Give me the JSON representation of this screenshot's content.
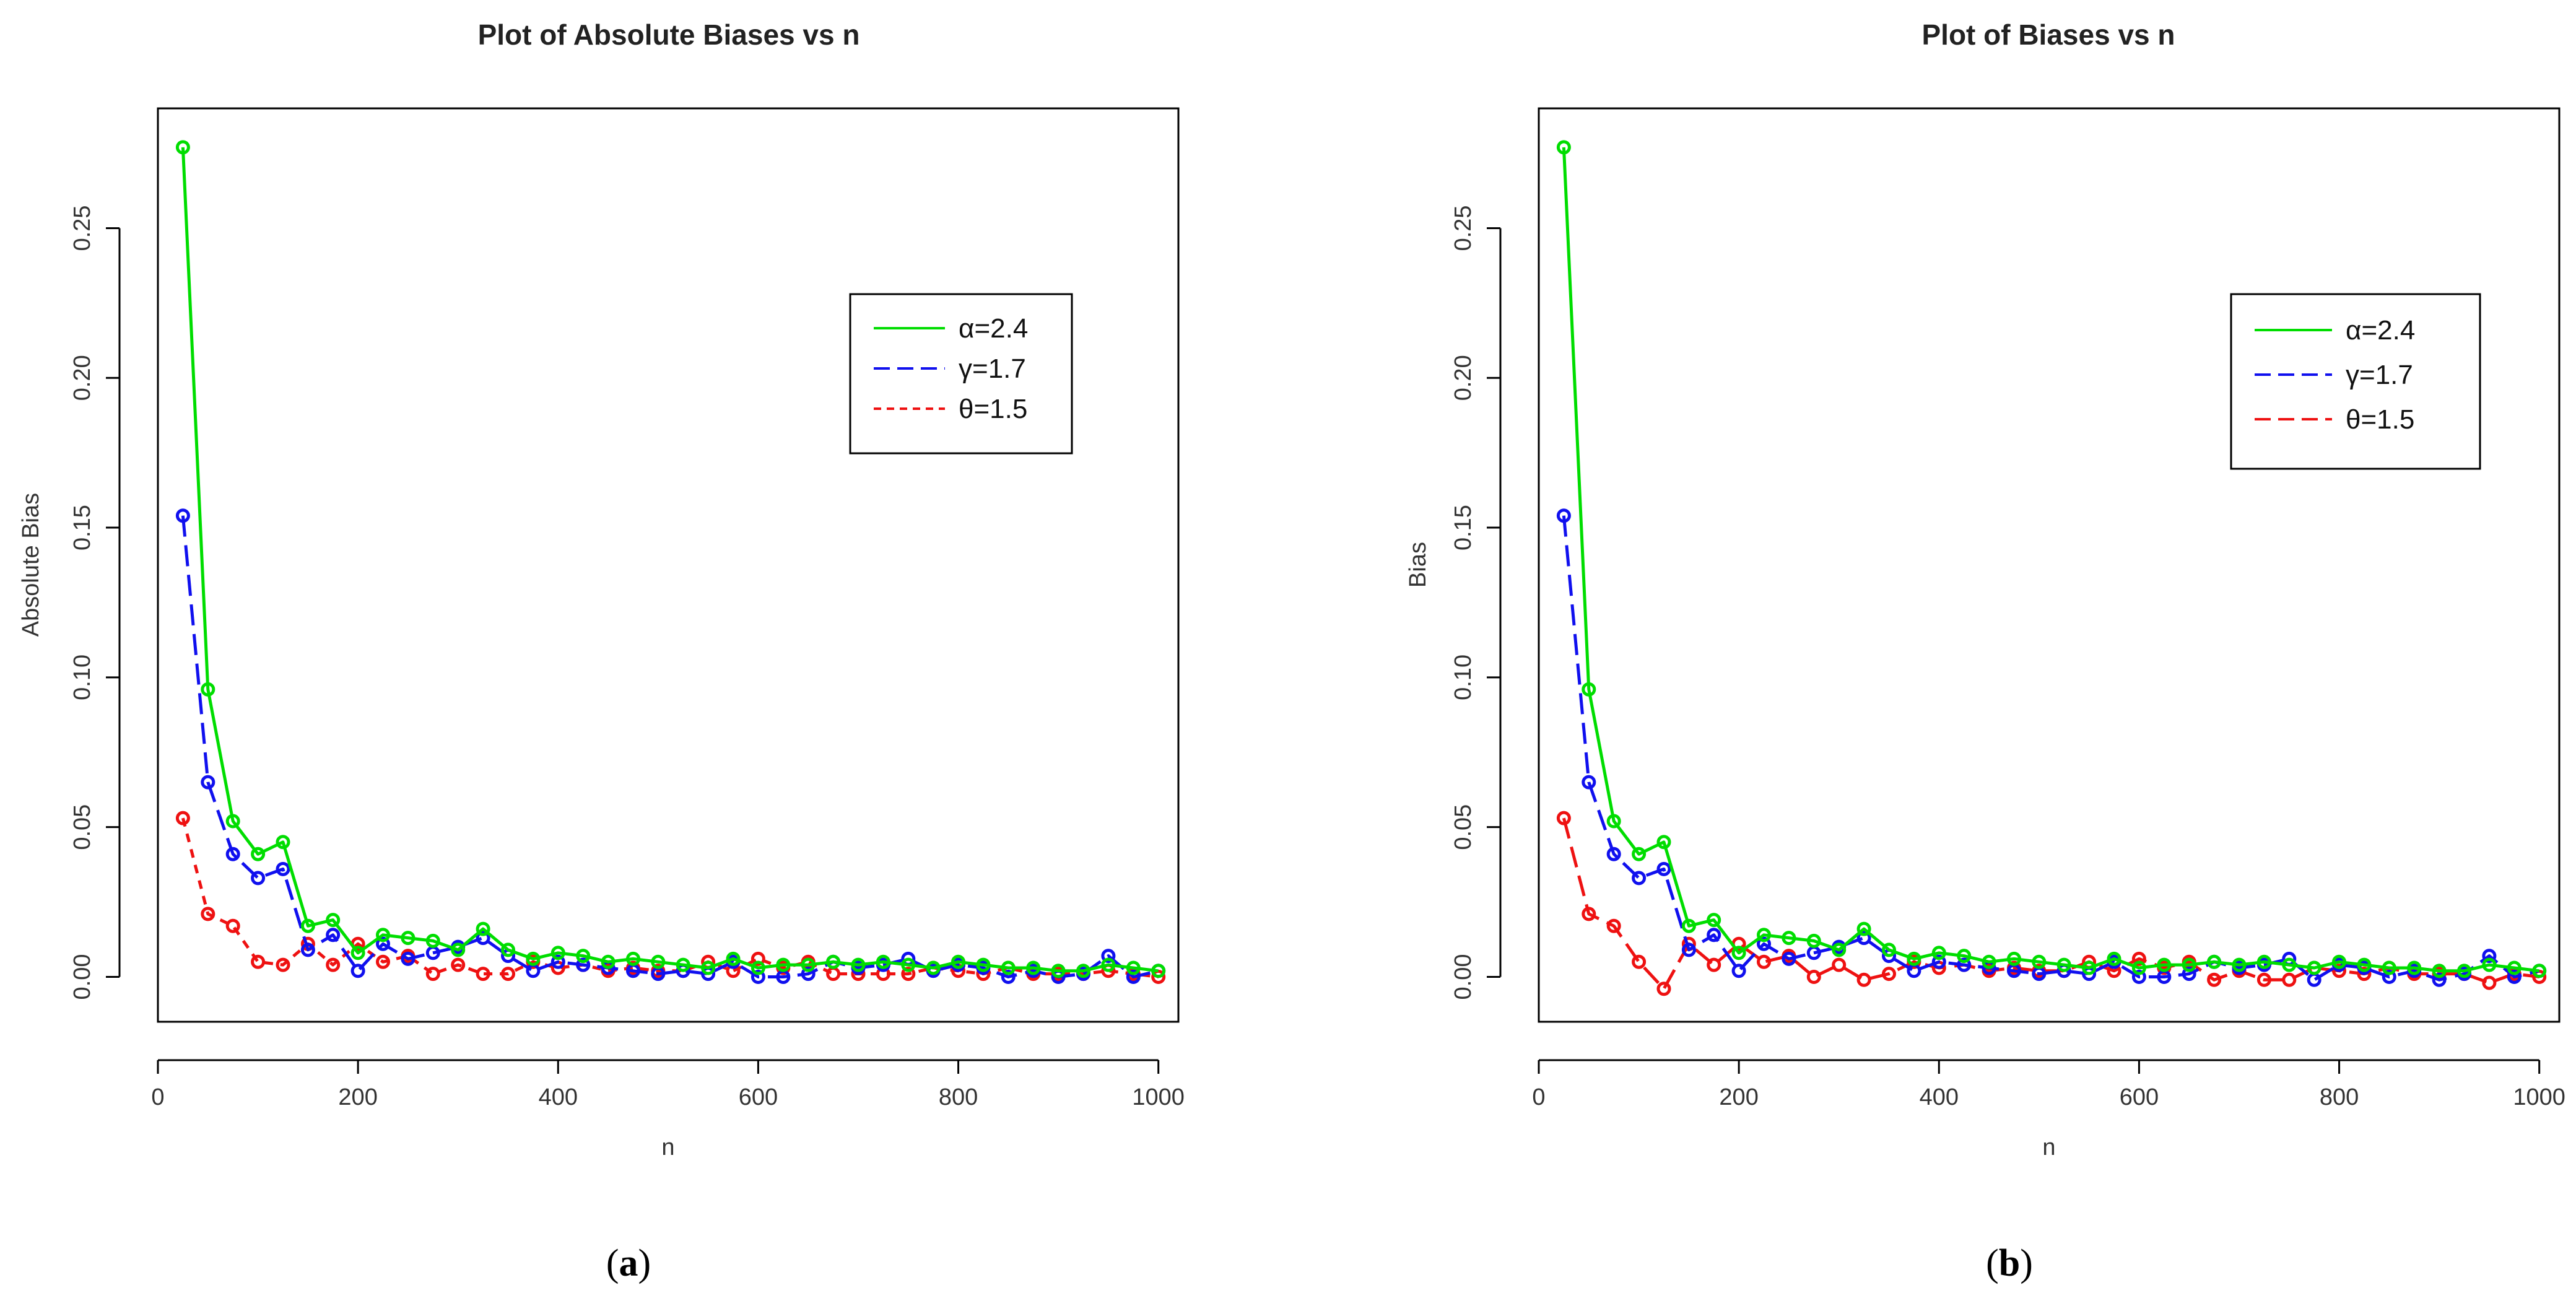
{
  "figure": {
    "panels": [
      {
        "caption_open": "(",
        "caption_letter": "a",
        "caption_close": ")"
      },
      {
        "caption_open": "(",
        "caption_letter": "b",
        "caption_close": ")"
      }
    ]
  },
  "chart_data": [
    {
      "type": "line",
      "title": "Plot of Absolute Biases vs n",
      "xlabel": "n",
      "ylabel": "Absolute Bias",
      "xlim": [
        0,
        1020
      ],
      "ylim": [
        -0.015,
        0.29
      ],
      "xticks": [
        0,
        200,
        400,
        600,
        800,
        1000
      ],
      "yticks": [
        0.0,
        0.05,
        0.1,
        0.15,
        0.2,
        0.25
      ],
      "ytick_labels": [
        "0.00",
        "0.05",
        "0.10",
        "0.15",
        "0.20",
        "0.25"
      ],
      "legend_position": "top-right",
      "x": [
        25,
        50,
        75,
        100,
        125,
        150,
        175,
        200,
        225,
        250,
        275,
        300,
        325,
        350,
        375,
        400,
        425,
        450,
        475,
        500,
        525,
        550,
        575,
        600,
        625,
        650,
        675,
        700,
        725,
        750,
        775,
        800,
        825,
        850,
        875,
        900,
        925,
        950,
        975,
        1000
      ],
      "series": [
        {
          "name": "α=2.4",
          "color": "#00dd00",
          "dash": "solid",
          "values": [
            0.277,
            0.096,
            0.052,
            0.041,
            0.045,
            0.017,
            0.019,
            0.008,
            0.014,
            0.013,
            0.012,
            0.009,
            0.016,
            0.009,
            0.006,
            0.008,
            0.007,
            0.005,
            0.006,
            0.005,
            0.004,
            0.003,
            0.006,
            0.003,
            0.004,
            0.004,
            0.005,
            0.004,
            0.005,
            0.004,
            0.003,
            0.005,
            0.004,
            0.003,
            0.003,
            0.002,
            0.002,
            0.004,
            0.003,
            0.002
          ]
        },
        {
          "name": "γ=1.7",
          "color": "#1010ee",
          "dash": "dashed",
          "values": [
            0.154,
            0.065,
            0.041,
            0.033,
            0.036,
            0.009,
            0.014,
            0.002,
            0.011,
            0.006,
            0.008,
            0.01,
            0.013,
            0.007,
            0.002,
            0.005,
            0.004,
            0.003,
            0.002,
            0.001,
            0.002,
            0.001,
            0.005,
            0.0,
            0.0,
            0.001,
            0.005,
            0.003,
            0.004,
            0.006,
            0.002,
            0.004,
            0.003,
            0.0,
            0.002,
            0.0,
            0.001,
            0.007,
            0.0,
            0.002
          ]
        },
        {
          "name": "θ=1.5",
          "color": "#ee1111",
          "dash": "dotted",
          "values": [
            0.053,
            0.021,
            0.017,
            0.005,
            0.004,
            0.011,
            0.004,
            0.011,
            0.005,
            0.007,
            0.001,
            0.004,
            0.001,
            0.001,
            0.005,
            0.003,
            0.004,
            0.002,
            0.003,
            0.002,
            0.002,
            0.005,
            0.002,
            0.006,
            0.003,
            0.005,
            0.001,
            0.001,
            0.001,
            0.001,
            0.003,
            0.002,
            0.001,
            0.003,
            0.001,
            0.001,
            0.001,
            0.002,
            0.001,
            0.0
          ]
        }
      ]
    },
    {
      "type": "line",
      "title": "Plot of Biases vs n",
      "xlabel": "n",
      "ylabel": "Bias",
      "xlim": [
        0,
        1020
      ],
      "ylim": [
        -0.015,
        0.29
      ],
      "xticks": [
        0,
        200,
        400,
        600,
        800,
        1000
      ],
      "yticks": [
        0.0,
        0.05,
        0.1,
        0.15,
        0.2,
        0.25
      ],
      "ytick_labels": [
        "0.00",
        "0.05",
        "0.10",
        "0.15",
        "0.20",
        "0.25"
      ],
      "legend_position": "top-right",
      "x": [
        25,
        50,
        75,
        100,
        125,
        150,
        175,
        200,
        225,
        250,
        275,
        300,
        325,
        350,
        375,
        400,
        425,
        450,
        475,
        500,
        525,
        550,
        575,
        600,
        625,
        650,
        675,
        700,
        725,
        750,
        775,
        800,
        825,
        850,
        875,
        900,
        925,
        950,
        975,
        1000
      ],
      "series": [
        {
          "name": "α=2.4",
          "color": "#00dd00",
          "dash": "solid",
          "values": [
            0.277,
            0.096,
            0.052,
            0.041,
            0.045,
            0.017,
            0.019,
            0.008,
            0.014,
            0.013,
            0.012,
            0.009,
            0.016,
            0.009,
            0.006,
            0.008,
            0.007,
            0.005,
            0.006,
            0.005,
            0.004,
            0.003,
            0.006,
            0.003,
            0.004,
            0.004,
            0.005,
            0.004,
            0.005,
            0.004,
            0.003,
            0.005,
            0.004,
            0.003,
            0.003,
            0.002,
            0.002,
            0.004,
            0.003,
            0.002
          ]
        },
        {
          "name": "γ=1.7",
          "color": "#1010ee",
          "dash": "dashed",
          "values": [
            0.154,
            0.065,
            0.041,
            0.033,
            0.036,
            0.009,
            0.014,
            0.002,
            0.011,
            0.006,
            0.008,
            0.01,
            0.013,
            0.007,
            0.002,
            0.005,
            0.004,
            0.003,
            0.002,
            0.001,
            0.002,
            0.001,
            0.005,
            0.0,
            0.0,
            0.001,
            0.005,
            0.003,
            0.004,
            0.006,
            -0.001,
            0.004,
            0.003,
            0.0,
            0.002,
            -0.001,
            0.001,
            0.007,
            0.0,
            0.002
          ]
        },
        {
          "name": "θ=1.5",
          "color": "#ee1111",
          "dash": "dashed",
          "values": [
            0.053,
            0.021,
            0.017,
            0.005,
            -0.004,
            0.011,
            0.004,
            0.011,
            0.005,
            0.007,
            0.0,
            0.004,
            -0.001,
            0.001,
            0.005,
            0.003,
            0.004,
            0.002,
            0.003,
            0.002,
            0.002,
            0.005,
            0.002,
            0.006,
            0.003,
            0.005,
            -0.001,
            0.002,
            -0.001,
            -0.001,
            0.003,
            0.002,
            0.001,
            0.003,
            0.001,
            0.001,
            0.001,
            -0.002,
            0.001,
            0.0
          ]
        }
      ]
    }
  ]
}
